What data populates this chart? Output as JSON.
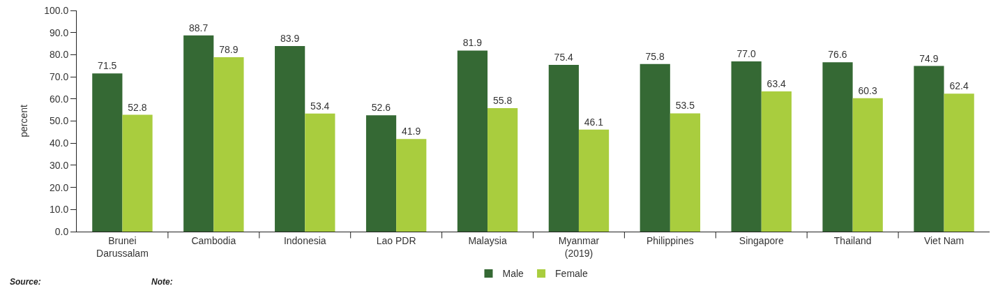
{
  "chart_data": {
    "type": "bar",
    "ylabel": "percent",
    "categories": [
      "Brunei\nDarussalam",
      "Cambodia",
      "Indonesia",
      "Lao PDR",
      "Malaysia",
      "Myanmar\n(2019)",
      "Philippines",
      "Singapore",
      "Thailand",
      "Viet Nam"
    ],
    "series": [
      {
        "name": "Male",
        "color": "#356934",
        "values": [
          71.5,
          88.7,
          83.9,
          52.6,
          81.9,
          75.4,
          75.8,
          77.0,
          76.6,
          74.9
        ],
        "value_labels": [
          "71.5",
          "88.7",
          "83.9",
          "52.6",
          "81.9",
          "75.4",
          "75.8",
          "77.0",
          "76.6",
          "74.9"
        ]
      },
      {
        "name": "Female",
        "color": "#a9cd3e",
        "values": [
          52.8,
          78.9,
          53.4,
          41.9,
          55.8,
          46.1,
          53.5,
          63.4,
          60.3,
          62.4
        ],
        "value_labels": [
          "52.8",
          "78.9",
          "53.4",
          "41.9",
          "55.8",
          "46.1",
          "53.5",
          "63.4",
          "60.3",
          "62.4"
        ]
      }
    ],
    "ylim": [
      0,
      100
    ],
    "yticks": [
      {
        "value": 0,
        "label": "0.0"
      },
      {
        "value": 10,
        "label": "10.0"
      },
      {
        "value": 20,
        "label": "20.0"
      },
      {
        "value": 30,
        "label": "30.0"
      },
      {
        "value": 40,
        "label": "40.0"
      },
      {
        "value": 50,
        "label": "50.0"
      },
      {
        "value": 60,
        "label": "60.0"
      },
      {
        "value": 70,
        "label": "70.0"
      },
      {
        "value": 80,
        "label": "80.0"
      },
      {
        "value": 90,
        "label": "90.0"
      },
      {
        "value": 100,
        "label": "100.0"
      }
    ],
    "grid": false,
    "legend": "bottom",
    "annotations": [
      "Source:",
      "Note:"
    ]
  }
}
